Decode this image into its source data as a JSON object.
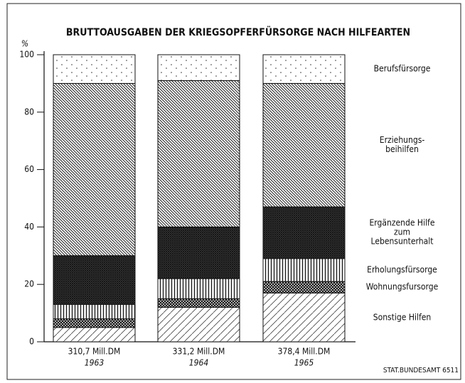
{
  "chart_data": {
    "type": "stacked_bar",
    "title": "BRUTTOAUSGABEN DER KRIEGSOPFERFÜRSORGE NACH HILFEARTEN",
    "y_label": "%",
    "categories": [
      "1963",
      "1964",
      "1965"
    ],
    "category_sublabels": [
      "310,7 Mill.DM",
      "331,2 Mill.DM",
      "378,4 Mill.DM"
    ],
    "series": [
      {
        "name": "Sonstige Hilfen",
        "values": [
          5,
          12,
          17
        ]
      },
      {
        "name": "Wohnungsfursorge",
        "values": [
          3,
          3,
          4
        ]
      },
      {
        "name": "Erholungsfürsorge",
        "values": [
          5,
          7,
          8
        ]
      },
      {
        "name": "Ergänzende Hilfe\nzum\nLebensunterhalt",
        "values": [
          17,
          18,
          18
        ]
      },
      {
        "name": "Erziehungs-\nbeihilfen",
        "values": [
          60,
          51,
          43
        ]
      },
      {
        "name": "Berufsfürsorge",
        "values": [
          10,
          9,
          10
        ]
      }
    ],
    "ylim": [
      0,
      100
    ],
    "yticks": [
      0,
      20,
      40,
      60,
      80,
      100
    ],
    "source": "STAT.BUNDESAMT 6511"
  }
}
